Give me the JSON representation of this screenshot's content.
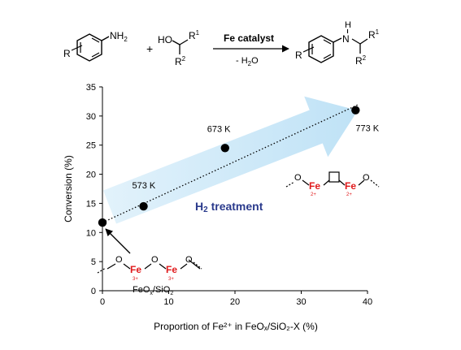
{
  "reaction": {
    "amine_group": "NH",
    "amine_subscript": "2",
    "r_label": "R",
    "plus": "+",
    "ho": "HO",
    "r1": "R",
    "r1_sup": "1",
    "r2": "R",
    "r2_sup": "2",
    "catalyst": "Fe catalyst",
    "byproduct": "- H",
    "byproduct_sub": "2",
    "byproduct_tail": "O",
    "product_nh": "H",
    "product_n": "N",
    "product_r": "R",
    "product_r1": "R",
    "product_r1_sup": "1",
    "product_r2": "R",
    "product_r2_sup": "2"
  },
  "colors": {
    "catalyst": "#e0191b",
    "fe": "#e0191b",
    "arrow": "#cce8f8",
    "h2_text": "#2a3a8c",
    "points": "#000000"
  },
  "chart_data": {
    "type": "scatter",
    "xlabel": "Proportion of Fe²⁺ in FeOₓ/SiO₂-X (%)",
    "ylabel": "Conversion (%)",
    "xlim": [
      0,
      40
    ],
    "ylim": [
      0,
      35
    ],
    "xticks": [
      "0",
      "10",
      "20",
      "30",
      "40"
    ],
    "yticks": [
      "0",
      "5",
      "10",
      "15",
      "20",
      "25",
      "30",
      "35"
    ],
    "points": [
      {
        "x": 0,
        "y": 11.7,
        "label": ""
      },
      {
        "x": 6.2,
        "y": 14.5,
        "label": "573 K"
      },
      {
        "x": 18.5,
        "y": 24.5,
        "label": "673 K"
      },
      {
        "x": 38.2,
        "y": 31.0,
        "label": "773 K"
      }
    ],
    "trendline": {
      "style": "dotted",
      "from": [
        0,
        11.7
      ],
      "to": [
        38.5,
        31.9
      ]
    }
  },
  "annotations": {
    "h2_treatment": "H",
    "h2_sub": "2",
    "h2_tail": " treatment",
    "feox_label": "FeO",
    "feox_sub": "x",
    "feox_tail": "/SiO",
    "feox_sub2": "2",
    "fe": "Fe",
    "o": "O",
    "fe3_charge": "3+",
    "fe2_charge": "2+"
  }
}
